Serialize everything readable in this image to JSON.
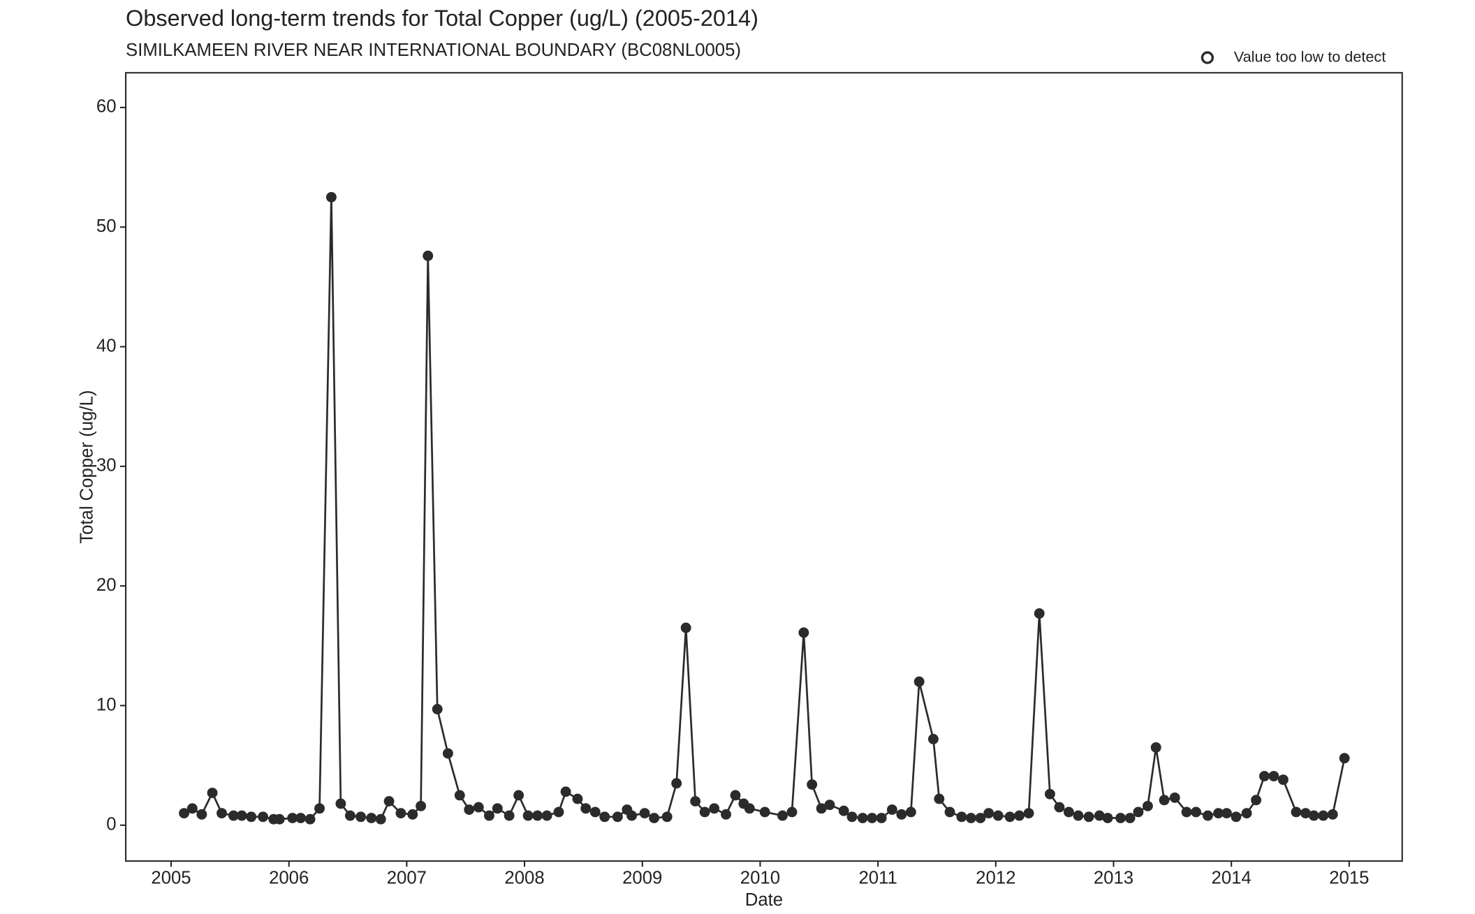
{
  "chart_data": {
    "type": "line",
    "title": "Observed long-term trends for Total Copper (ug/L) (2005-2014)",
    "subtitle": "SIMILKAMEEN RIVER NEAR INTERNATIONAL BOUNDARY (BC08NL0005)",
    "x_label": "Date",
    "y_label": "Total Copper (ug/L)",
    "legend_label": "Value too low to detect",
    "color": "#2b2b2b",
    "xlim": [
      2004.615,
      2015.45
    ],
    "xticks": [
      2005,
      2006,
      2007,
      2008,
      2009,
      2010,
      2011,
      2012,
      2013,
      2014,
      2015
    ],
    "ylim": [
      -3,
      62.9
    ],
    "yticks": [
      0,
      10,
      20,
      30,
      40,
      50,
      60
    ],
    "x": [
      2005.11,
      2005.18,
      2005.26,
      2005.35,
      2005.43,
      2005.53,
      2005.6,
      2005.68,
      2005.78,
      2005.87,
      2005.92,
      2006.03,
      2006.1,
      2006.18,
      2006.26,
      2006.36,
      2006.44,
      2006.52,
      2006.61,
      2006.7,
      2006.78,
      2006.85,
      2006.95,
      2007.05,
      2007.12,
      2007.18,
      2007.26,
      2007.35,
      2007.45,
      2007.53,
      2007.61,
      2007.7,
      2007.77,
      2007.87,
      2007.95,
      2008.03,
      2008.11,
      2008.19,
      2008.29,
      2008.35,
      2008.45,
      2008.52,
      2008.6,
      2008.68,
      2008.79,
      2008.87,
      2008.91,
      2009.02,
      2009.1,
      2009.21,
      2009.29,
      2009.37,
      2009.45,
      2009.53,
      2009.61,
      2009.71,
      2009.79,
      2009.86,
      2009.91,
      2010.04,
      2010.19,
      2010.27,
      2010.37,
      2010.44,
      2010.52,
      2010.59,
      2010.71,
      2010.78,
      2010.87,
      2010.95,
      2011.03,
      2011.12,
      2011.2,
      2011.28,
      2011.35,
      2011.47,
      2011.52,
      2011.61,
      2011.71,
      2011.79,
      2011.87,
      2011.94,
      2012.02,
      2012.12,
      2012.2,
      2012.28,
      2012.37,
      2012.46,
      2012.54,
      2012.62,
      2012.7,
      2012.79,
      2012.88,
      2012.95,
      2013.06,
      2013.14,
      2013.21,
      2013.29,
      2013.36,
      2013.43,
      2013.52,
      2013.62,
      2013.7,
      2013.8,
      2013.89,
      2013.96,
      2014.04,
      2014.13,
      2014.21,
      2014.28,
      2014.36,
      2014.44,
      2014.55,
      2014.63,
      2014.7,
      2014.78,
      2014.86,
      2014.96
    ],
    "y": [
      1.0,
      1.4,
      0.9,
      2.7,
      1.0,
      0.8,
      0.8,
      0.7,
      0.7,
      0.5,
      0.5,
      0.6,
      0.6,
      0.5,
      1.4,
      52.5,
      1.8,
      0.8,
      0.7,
      0.6,
      0.5,
      2.0,
      1.0,
      0.9,
      1.6,
      47.6,
      9.7,
      6.0,
      2.5,
      1.3,
      1.5,
      0.8,
      1.4,
      0.8,
      2.5,
      0.8,
      0.8,
      0.8,
      1.1,
      2.8,
      2.2,
      1.4,
      1.1,
      0.7,
      0.7,
      1.3,
      0.8,
      1.0,
      0.6,
      0.7,
      3.5,
      16.5,
      2.0,
      1.1,
      1.4,
      0.9,
      2.5,
      1.8,
      1.4,
      1.1,
      0.8,
      1.1,
      16.1,
      3.4,
      1.4,
      1.7,
      1.2,
      0.7,
      0.6,
      0.6,
      0.6,
      1.3,
      0.9,
      1.1,
      12.0,
      7.2,
      2.2,
      1.1,
      0.7,
      0.6,
      0.6,
      1.0,
      0.8,
      0.7,
      0.8,
      1.0,
      17.7,
      2.6,
      1.5,
      1.1,
      0.8,
      0.7,
      0.8,
      0.6,
      0.6,
      0.6,
      1.1,
      1.6,
      6.5,
      2.1,
      2.3,
      1.1,
      1.1,
      0.8,
      1.0,
      1.0,
      0.7,
      1.0,
      2.1,
      4.1,
      4.1,
      3.8,
      1.1,
      1.0,
      0.8,
      0.8,
      0.9,
      5.6
    ]
  }
}
